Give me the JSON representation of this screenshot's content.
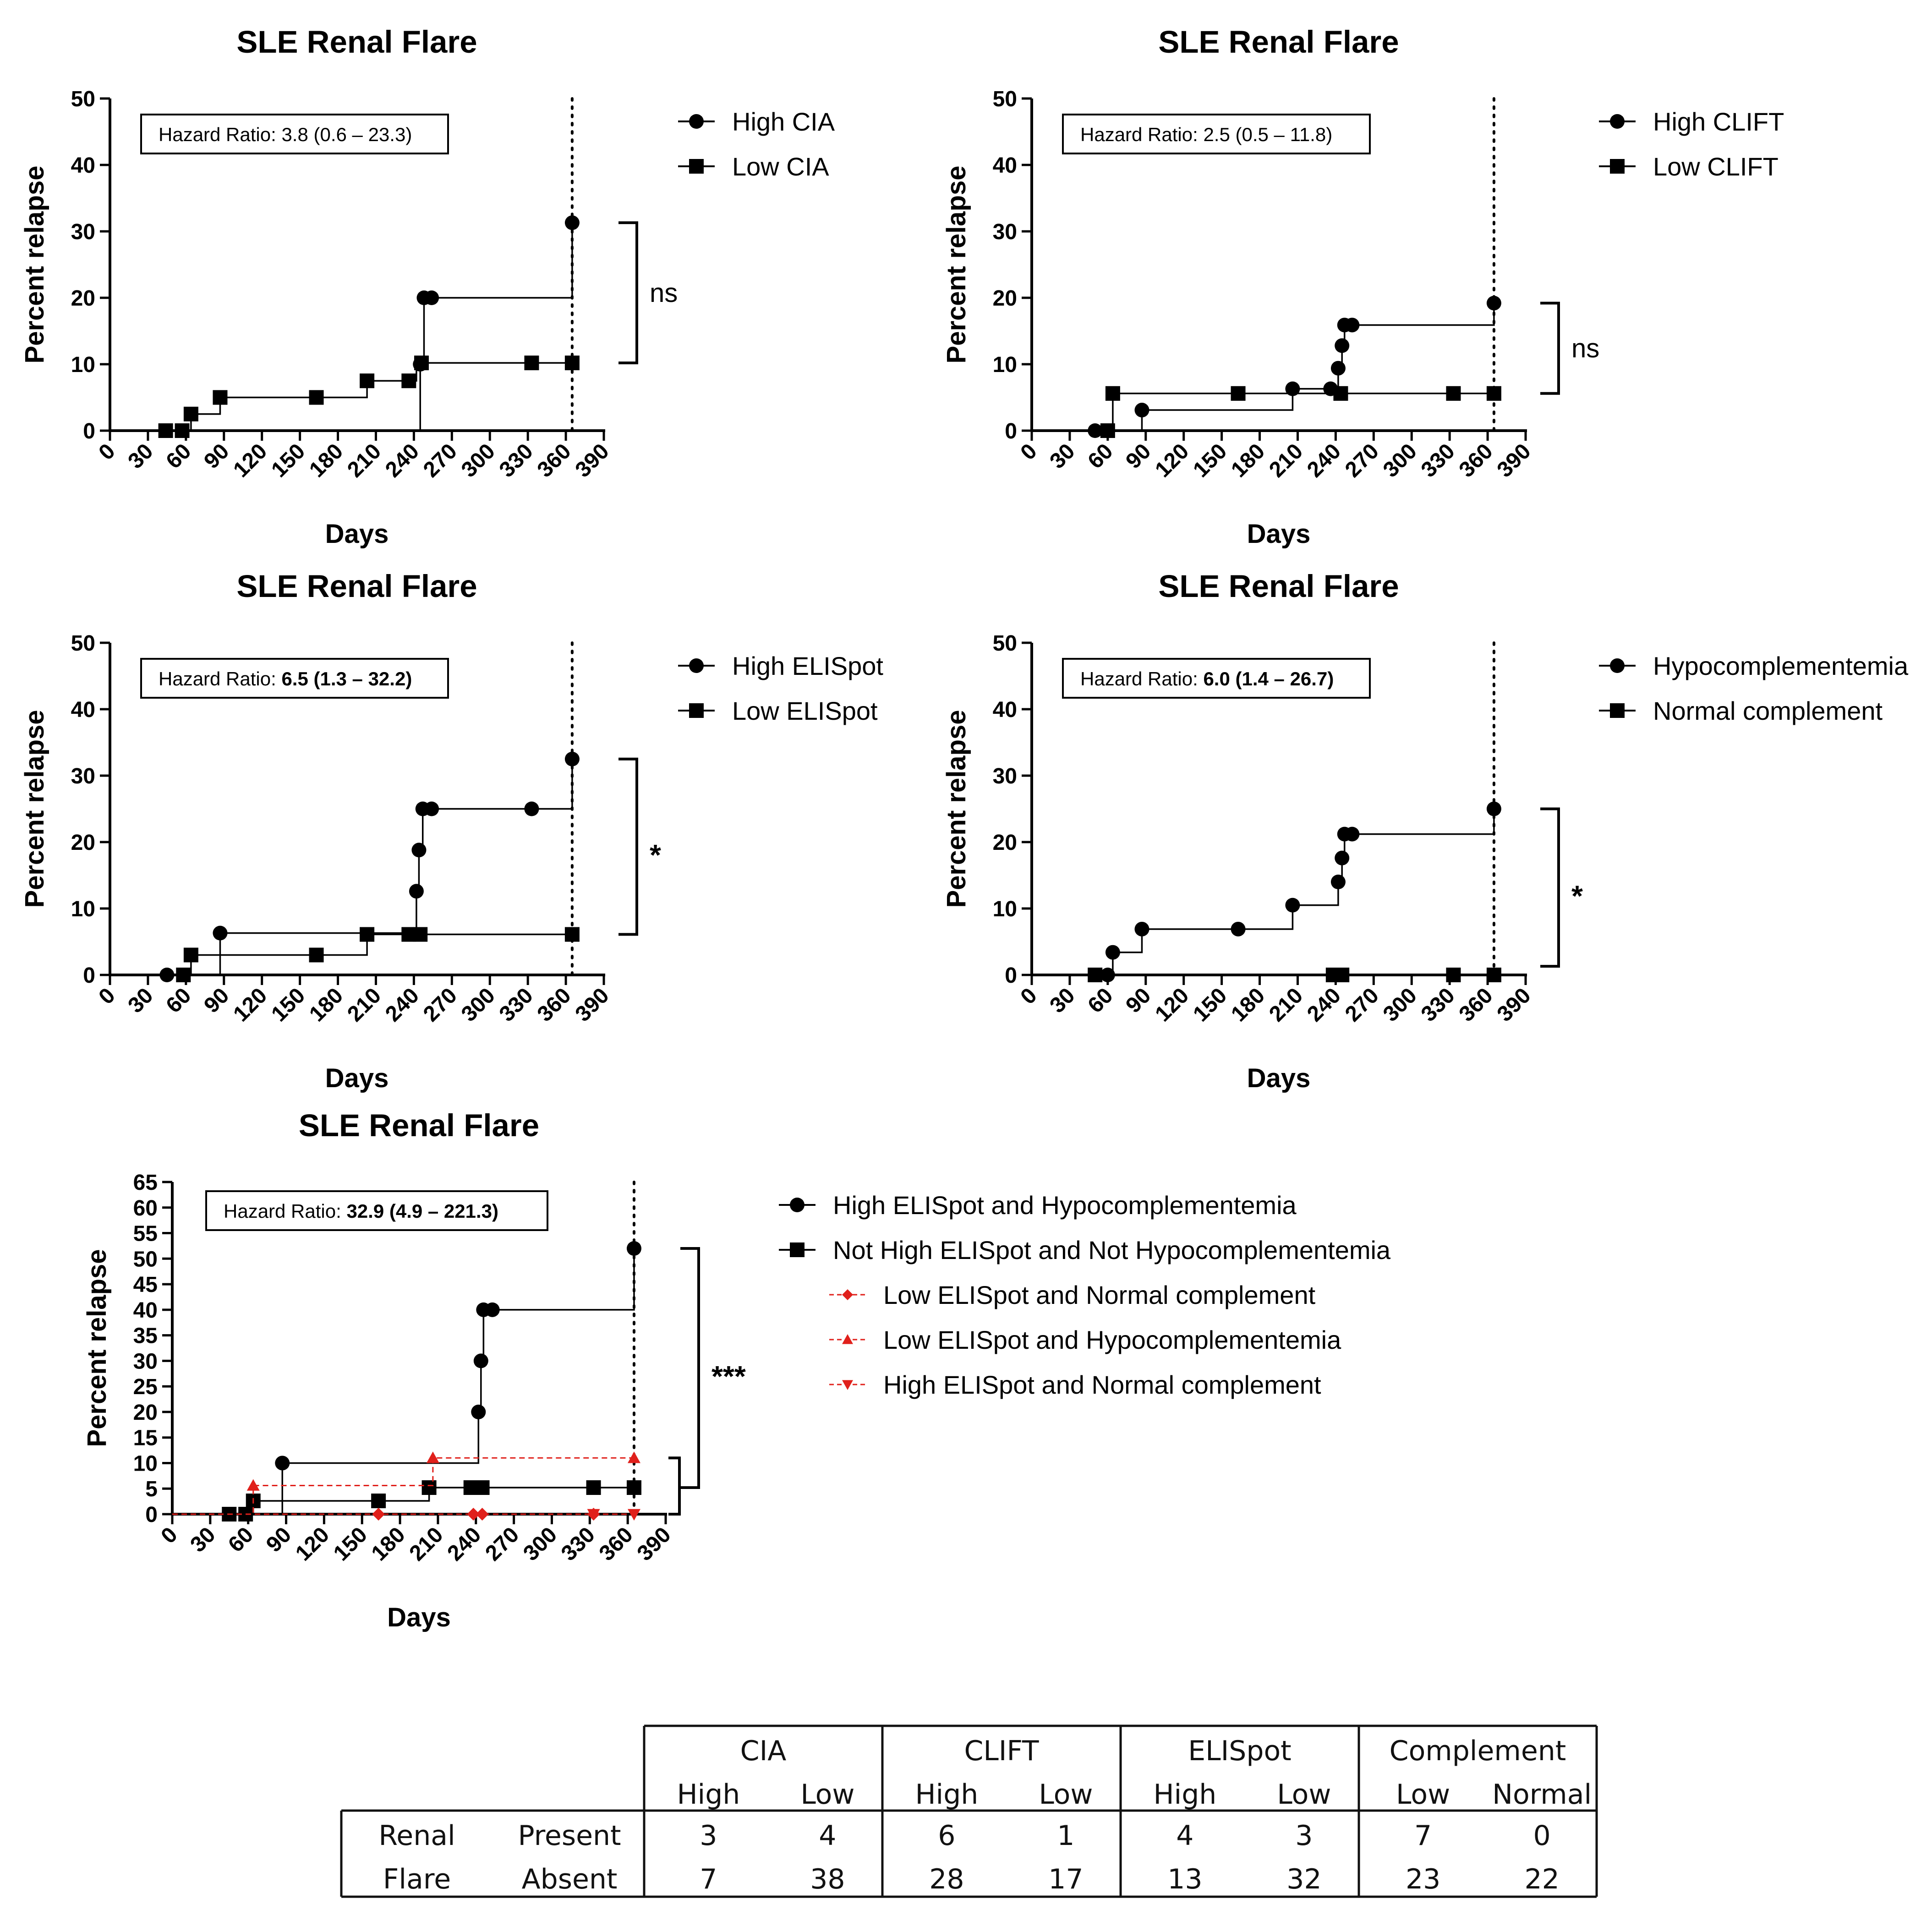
{
  "colors": {
    "black": "#000000",
    "red": "#e0201b"
  },
  "chart_data": [
    {
      "type": "line",
      "subtype": "kaplan-meier",
      "title": "SLE Renal Flare",
      "xlabel": "Days",
      "ylabel": "Percent relapse",
      "xlim": [
        0,
        390
      ],
      "ylim": [
        0,
        50
      ],
      "xticks": [
        "0",
        "30",
        "60",
        "90",
        "120",
        "150",
        "180",
        "210",
        "240",
        "270",
        "300",
        "330",
        "360",
        "390"
      ],
      "yticks": [
        "0",
        "10",
        "20",
        "30",
        "40",
        "50"
      ],
      "hazard": {
        "prefix": "Hazard Ratio: ",
        "value": "3.8 (0.6 – 23.3)",
        "bold": false
      },
      "significance": "ns",
      "sig_pair": [
        31.3,
        10.2
      ],
      "series": [
        {
          "name": "High CIA",
          "marker": "circle",
          "color": "#000000",
          "dashed": false,
          "steps": [
            [
              0,
              0
            ],
            [
              245,
              0
            ],
            [
              245,
              10
            ],
            [
              248,
              10
            ],
            [
              248,
              20
            ],
            [
              365,
              20
            ],
            [
              365,
              31.3
            ]
          ],
          "markers": [
            [
              245,
              10
            ],
            [
              248,
              20
            ],
            [
              254,
              20
            ],
            [
              365,
              31.3
            ]
          ]
        },
        {
          "name": "Low CIA",
          "marker": "square",
          "color": "#000000",
          "dashed": false,
          "steps": [
            [
              0,
              0
            ],
            [
              64,
              0
            ],
            [
              64,
              2.5
            ],
            [
              87,
              2.5
            ],
            [
              87,
              5
            ],
            [
              203,
              5
            ],
            [
              203,
              7.5
            ],
            [
              242,
              7.5
            ],
            [
              242,
              10.2
            ],
            [
              365,
              10.2
            ]
          ],
          "markers": [
            [
              44,
              0
            ],
            [
              57,
              0
            ],
            [
              64,
              2.5
            ],
            [
              87,
              5
            ],
            [
              163,
              5
            ],
            [
              203,
              7.5
            ],
            [
              236,
              7.5
            ],
            [
              246,
              10.2
            ],
            [
              333,
              10.2
            ],
            [
              365,
              10.2
            ]
          ]
        }
      ]
    },
    {
      "type": "line",
      "subtype": "kaplan-meier",
      "title": "SLE Renal Flare",
      "xlabel": "Days",
      "ylabel": "Percent relapse",
      "xlim": [
        0,
        390
      ],
      "ylim": [
        0,
        50
      ],
      "xticks": [
        "0",
        "30",
        "60",
        "90",
        "120",
        "150",
        "180",
        "210",
        "240",
        "270",
        "300",
        "330",
        "360",
        "390"
      ],
      "yticks": [
        "0",
        "10",
        "20",
        "30",
        "40",
        "50"
      ],
      "hazard": {
        "prefix": "Hazard Ratio: ",
        "value": "2.5 (0.5 – 11.8)",
        "bold": false
      },
      "significance": "ns",
      "sig_pair": [
        19.2,
        5.6
      ],
      "series": [
        {
          "name": "High CLIFT",
          "marker": "circle",
          "color": "#000000",
          "dashed": false,
          "steps": [
            [
              0,
              0
            ],
            [
              87,
              0
            ],
            [
              87,
              3.1
            ],
            [
              206,
              3.1
            ],
            [
              206,
              6.3
            ],
            [
              242,
              6.3
            ],
            [
              242,
              9.4
            ],
            [
              245,
              9.4
            ],
            [
              245,
              12.8
            ],
            [
              247,
              12.8
            ],
            [
              247,
              15.9
            ],
            [
              365,
              15.9
            ],
            [
              365,
              19.2
            ]
          ],
          "markers": [
            [
              50,
              0
            ],
            [
              87,
              3.1
            ],
            [
              206,
              6.3
            ],
            [
              236,
              6.3
            ],
            [
              242,
              9.4
            ],
            [
              245,
              12.8
            ],
            [
              247,
              15.9
            ],
            [
              253,
              15.9
            ],
            [
              365,
              19.2
            ]
          ]
        },
        {
          "name": "Low CLIFT",
          "marker": "square",
          "color": "#000000",
          "dashed": false,
          "steps": [
            [
              0,
              0
            ],
            [
              64,
              0
            ],
            [
              64,
              5.6
            ],
            [
              365,
              5.6
            ]
          ],
          "markers": [
            [
              60,
              0
            ],
            [
              64,
              5.6
            ],
            [
              163,
              5.6
            ],
            [
              244,
              5.6
            ],
            [
              333,
              5.6
            ],
            [
              365,
              5.6
            ]
          ]
        }
      ]
    },
    {
      "type": "line",
      "subtype": "kaplan-meier",
      "title": "SLE Renal Flare",
      "xlabel": "Days",
      "ylabel": "Percent relapse",
      "xlim": [
        0,
        390
      ],
      "ylim": [
        0,
        50
      ],
      "xticks": [
        "0",
        "30",
        "60",
        "90",
        "120",
        "150",
        "180",
        "210",
        "240",
        "270",
        "300",
        "330",
        "360",
        "390"
      ],
      "yticks": [
        "0",
        "10",
        "20",
        "30",
        "40",
        "50"
      ],
      "hazard": {
        "prefix": "Hazard Ratio: ",
        "value": "6.5 (1.3 – 32.2)",
        "bold": true
      },
      "significance": "*",
      "sig_pair": [
        32.5,
        6.1
      ],
      "series": [
        {
          "name": "High ELISpot",
          "marker": "circle",
          "color": "#000000",
          "dashed": false,
          "steps": [
            [
              0,
              0
            ],
            [
              87,
              0
            ],
            [
              87,
              6.3
            ],
            [
              242,
              6.3
            ],
            [
              242,
              12.6
            ],
            [
              244,
              12.6
            ],
            [
              244,
              18.8
            ],
            [
              247,
              18.8
            ],
            [
              247,
              25
            ],
            [
              365,
              25
            ],
            [
              365,
              32.5
            ]
          ],
          "markers": [
            [
              45,
              0
            ],
            [
              87,
              6.3
            ],
            [
              242,
              12.6
            ],
            [
              244,
              18.8
            ],
            [
              247,
              25
            ],
            [
              254,
              25
            ],
            [
              333,
              25
            ],
            [
              365,
              32.5
            ]
          ]
        },
        {
          "name": "Low ELISpot",
          "marker": "square",
          "color": "#000000",
          "dashed": false,
          "steps": [
            [
              0,
              0
            ],
            [
              64,
              0
            ],
            [
              64,
              3
            ],
            [
              203,
              3
            ],
            [
              203,
              6.1
            ],
            [
              365,
              6.1
            ]
          ],
          "markers": [
            [
              58,
              0
            ],
            [
              64,
              3
            ],
            [
              163,
              3
            ],
            [
              203,
              6.1
            ],
            [
              236,
              6.1
            ],
            [
              245,
              6.1
            ],
            [
              365,
              6.1
            ]
          ]
        }
      ]
    },
    {
      "type": "line",
      "subtype": "kaplan-meier",
      "title": "SLE Renal Flare",
      "xlabel": "Days",
      "ylabel": "Percent relapse",
      "xlim": [
        0,
        390
      ],
      "ylim": [
        0,
        50
      ],
      "xticks": [
        "0",
        "30",
        "60",
        "90",
        "120",
        "150",
        "180",
        "210",
        "240",
        "270",
        "300",
        "330",
        "360",
        "390"
      ],
      "yticks": [
        "0",
        "10",
        "20",
        "30",
        "40",
        "50"
      ],
      "hazard": {
        "prefix": "Hazard Ratio: ",
        "value": "6.0 (1.4 – 26.7)",
        "bold": true
      },
      "significance": "*",
      "sig_pair": [
        25,
        1.3
      ],
      "series": [
        {
          "name": "Hypocomplementemia",
          "marker": "circle",
          "color": "#000000",
          "dashed": false,
          "steps": [
            [
              0,
              0
            ],
            [
              64,
              0
            ],
            [
              64,
              3.4
            ],
            [
              87,
              3.4
            ],
            [
              87,
              6.9
            ],
            [
              206,
              6.9
            ],
            [
              206,
              10.5
            ],
            [
              242,
              10.5
            ],
            [
              242,
              14
            ],
            [
              245,
              14
            ],
            [
              245,
              17.6
            ],
            [
              247,
              17.6
            ],
            [
              247,
              21.2
            ],
            [
              365,
              21.2
            ],
            [
              365,
              25
            ]
          ],
          "markers": [
            [
              60,
              0
            ],
            [
              64,
              3.4
            ],
            [
              87,
              6.9
            ],
            [
              163,
              6.9
            ],
            [
              206,
              10.5
            ],
            [
              242,
              14
            ],
            [
              245,
              17.6
            ],
            [
              247,
              21.2
            ],
            [
              253,
              21.2
            ],
            [
              365,
              25
            ]
          ]
        },
        {
          "name": "Normal complement",
          "marker": "square",
          "color": "#000000",
          "dashed": false,
          "steps": [
            [
              0,
              0
            ],
            [
              365,
              0
            ]
          ],
          "markers": [
            [
              50,
              0
            ],
            [
              238,
              0
            ],
            [
              245,
              0
            ],
            [
              333,
              0
            ],
            [
              365,
              0
            ]
          ]
        }
      ]
    },
    {
      "type": "line",
      "subtype": "kaplan-meier",
      "title": "SLE Renal Flare",
      "xlabel": "Days",
      "ylabel": "Percent relapse",
      "xlim": [
        0,
        390
      ],
      "ylim": [
        0,
        65
      ],
      "xticks": [
        "0",
        "30",
        "60",
        "90",
        "120",
        "150",
        "180",
        "210",
        "240",
        "270",
        "300",
        "330",
        "360",
        "390"
      ],
      "yticks": [
        "0",
        "5",
        "10",
        "15",
        "20",
        "25",
        "30",
        "35",
        "40",
        "45",
        "50",
        "55",
        "60",
        "65"
      ],
      "hazard": {
        "prefix": "Hazard Ratio: ",
        "value": "32.9 (4.9 – 221.3)",
        "bold": true
      },
      "significance": "***",
      "sig_pair": [
        52,
        5.2
      ],
      "sig_pair_small": [
        11,
        0
      ],
      "series": [
        {
          "name": "High ELISpot and Hypocomplementemia",
          "marker": "circle",
          "color": "#000000",
          "dashed": false,
          "steps": [
            [
              0,
              0
            ],
            [
              87,
              0
            ],
            [
              87,
              10
            ],
            [
              242,
              10
            ],
            [
              242,
              20
            ],
            [
              244,
              20
            ],
            [
              244,
              30
            ],
            [
              246,
              30
            ],
            [
              246,
              40
            ],
            [
              365,
              40
            ],
            [
              365,
              52
            ]
          ],
          "markers": [
            [
              87,
              10
            ],
            [
              242,
              20
            ],
            [
              244,
              30
            ],
            [
              246,
              40
            ],
            [
              253,
              40
            ],
            [
              365,
              52
            ]
          ]
        },
        {
          "name": "Not High ELISpot and Not Hypocomplementemia",
          "marker": "square",
          "color": "#000000",
          "dashed": false,
          "steps": [
            [
              0,
              0
            ],
            [
              64,
              0
            ],
            [
              64,
              2.6
            ],
            [
              203,
              2.6
            ],
            [
              203,
              5.2
            ],
            [
              365,
              5.2
            ]
          ],
          "markers": [
            [
              45,
              0
            ],
            [
              58,
              0
            ],
            [
              64,
              2.6
            ],
            [
              163,
              2.6
            ],
            [
              203,
              5.2
            ],
            [
              236,
              5.2
            ],
            [
              245,
              5.2
            ],
            [
              333,
              5.2
            ],
            [
              365,
              5.2
            ]
          ]
        },
        {
          "name": "Low ELISpot and Normal complement",
          "marker": "diamond",
          "color": "#e0201b",
          "dashed": true,
          "steps": [
            [
              0,
              0
            ],
            [
              365,
              0
            ]
          ],
          "markers": [
            [
              163,
              0
            ],
            [
              238,
              0
            ],
            [
              245,
              0
            ],
            [
              333,
              0
            ]
          ]
        },
        {
          "name": "Low ELISpot and Hypocomplementemia",
          "marker": "triangle-up",
          "color": "#e0201b",
          "dashed": true,
          "steps": [
            [
              0,
              0
            ],
            [
              64,
              0
            ],
            [
              64,
              5.6
            ],
            [
              206,
              5.6
            ],
            [
              206,
              11
            ],
            [
              365,
              11
            ]
          ],
          "markers": [
            [
              64,
              5.6
            ],
            [
              206,
              11
            ],
            [
              365,
              11
            ]
          ]
        },
        {
          "name": "High ELISpot and Normal complement",
          "marker": "triangle-down",
          "color": "#e0201b",
          "dashed": true,
          "steps": [
            [
              0,
              0
            ],
            [
              365,
              0
            ]
          ],
          "markers": [
            [
              333,
              0
            ],
            [
              365,
              0
            ]
          ]
        }
      ]
    }
  ],
  "table": {
    "groups": [
      "CIA",
      "CLIFT",
      "ELISpot",
      "Complement"
    ],
    "subheaders": [
      "High",
      "Low",
      "High",
      "Low",
      "High",
      "Low",
      "Low",
      "Normal"
    ],
    "row_label": [
      "Renal",
      "Flare"
    ],
    "rows": [
      {
        "label": "Present",
        "values": [
          "3",
          "4",
          "6",
          "1",
          "4",
          "3",
          "7",
          "0"
        ]
      },
      {
        "label": "Absent",
        "values": [
          "7",
          "38",
          "28",
          "17",
          "13",
          "32",
          "23",
          "22"
        ]
      }
    ]
  }
}
